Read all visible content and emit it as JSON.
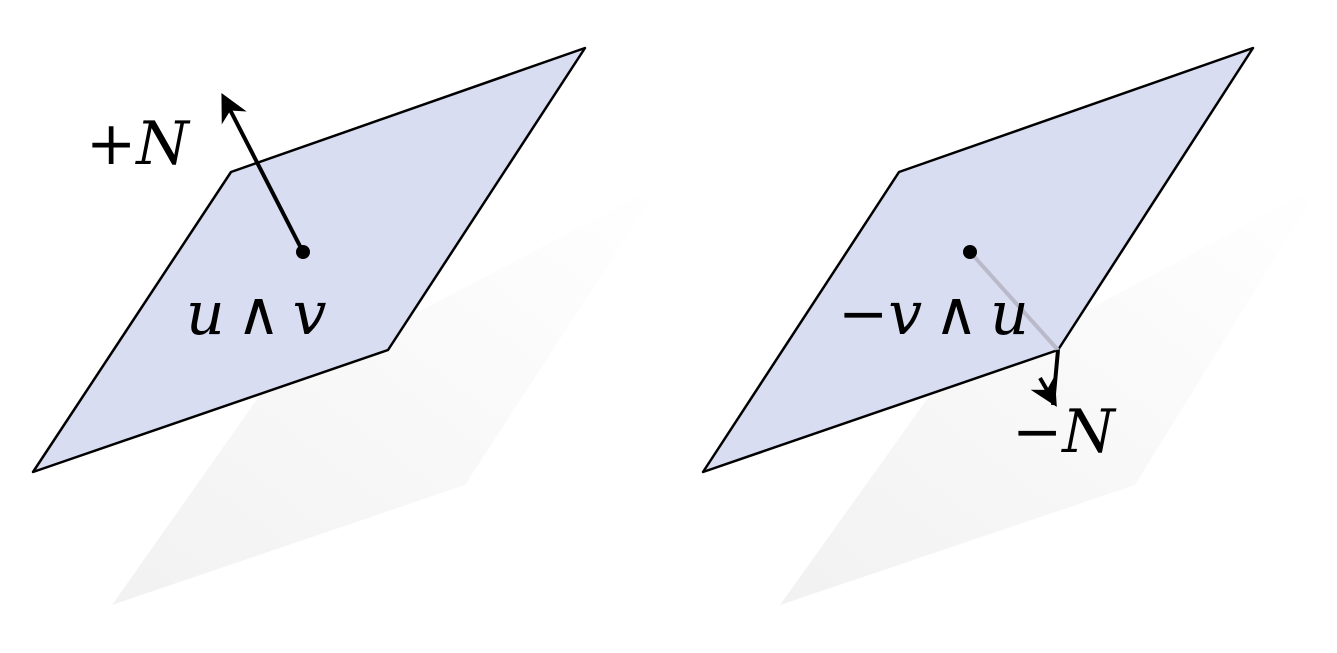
{
  "colors": {
    "plane_fill": "#d9ddf2",
    "plane_stroke": "#000000",
    "shadow": "#f3f3f3",
    "vector": "#000000",
    "occluded_vector": "#b9b9c9"
  },
  "panels": [
    {
      "normal_direction": "up",
      "normal_label": {
        "sign": "+",
        "name": "N"
      },
      "bivector_label": {
        "first": "u",
        "op": "∧",
        "second": "v",
        "prefix": ""
      }
    },
    {
      "normal_direction": "down",
      "normal_label": {
        "sign": "−",
        "name": "N"
      },
      "bivector_label": {
        "first": "v",
        "op": "∧",
        "second": "u",
        "prefix": "−"
      }
    }
  ]
}
